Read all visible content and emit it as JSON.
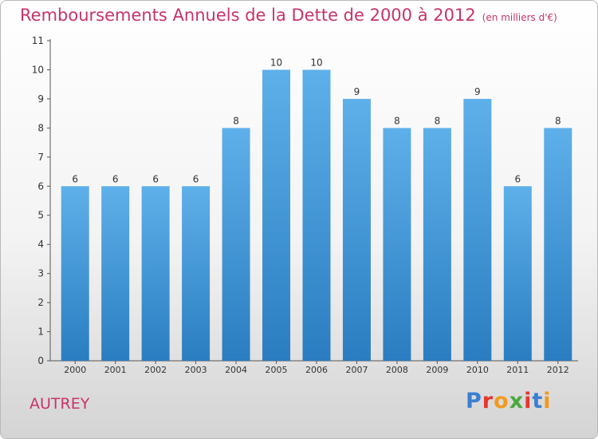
{
  "chart_data": {
    "type": "bar",
    "title": "Remboursements Annuels de la Dette de 2000 à 2012",
    "subtitle": "(en milliers d'€)",
    "categories": [
      "2000",
      "2001",
      "2002",
      "2003",
      "2004",
      "2005",
      "2006",
      "2007",
      "2008",
      "2009",
      "2010",
      "2011",
      "2012"
    ],
    "values": [
      6,
      6,
      6,
      6,
      8,
      10,
      10,
      9,
      8,
      8,
      9,
      6,
      8
    ],
    "ylim": [
      0,
      11
    ],
    "yticks": [
      0,
      1,
      2,
      3,
      4,
      5,
      6,
      7,
      8,
      9,
      10,
      11
    ],
    "xlabel": "",
    "ylabel": "",
    "grid": false,
    "data_labels": true,
    "colors": {
      "bar_top": "#5eb0ea",
      "bar_bottom": "#2a7dc0",
      "text": "#c8336b",
      "axis": "#555555"
    }
  },
  "footer": {
    "commune": "AUTREY",
    "logo_text": "Proxiti",
    "logo_colors": [
      "#3a7fd0",
      "#e6362e",
      "#f29a1e",
      "#4aa83e",
      "#e6362e",
      "#3a7fd0",
      "#f29a1e"
    ]
  }
}
